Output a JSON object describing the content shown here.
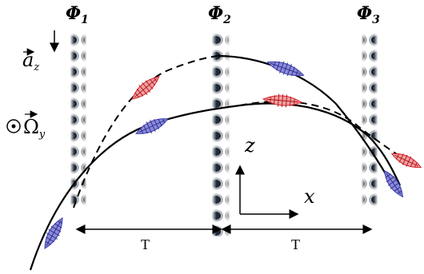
{
  "labels": {
    "phi1": "Φ",
    "phi1_sub": "1",
    "phi2": "Φ",
    "phi2_sub": "2",
    "phi3": "Φ",
    "phi3_sub": "3",
    "accel": "a",
    "accel_sub": "z",
    "rotation": "Ω",
    "rotation_sub": "y",
    "axis_z": "z",
    "axis_x": "x",
    "interval1": "T",
    "interval2": "T"
  },
  "colors": {
    "beam_fringe": "#1e2a38",
    "wavepacket_red": "#d8202a",
    "wavepacket_blue": "#3a3aa8",
    "trajectory": "#000000"
  }
}
